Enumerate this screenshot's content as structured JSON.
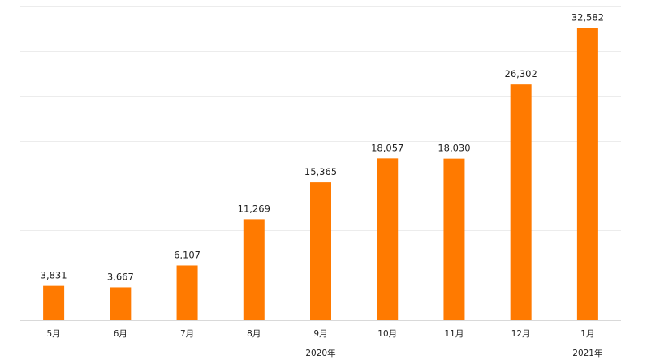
{
  "chart_data": {
    "type": "bar",
    "title": "",
    "xlabel": "",
    "ylabel": "",
    "categories": [
      "5月",
      "6月",
      "7月",
      "8月",
      "9月",
      "10月",
      "11月",
      "12月",
      "1月"
    ],
    "values": [
      3831,
      3667,
      6107,
      11269,
      15365,
      18057,
      18030,
      26302,
      32582
    ],
    "value_labels": [
      "3,831",
      "3,667",
      "6,107",
      "11,269",
      "15,365",
      "18,057",
      "18,030",
      "26,302",
      "32,582"
    ],
    "year_labels": [
      {
        "text": "2020年",
        "category_index": 4
      },
      {
        "text": "2021年",
        "category_index": 8
      }
    ],
    "ylim": [
      0,
      35000
    ],
    "y_ticks_labeled": false,
    "grid": true,
    "colors": {
      "bar": "#ff7a00",
      "grid": "#ececec",
      "axis": "#d9d9d9",
      "text": "#222222"
    }
  }
}
